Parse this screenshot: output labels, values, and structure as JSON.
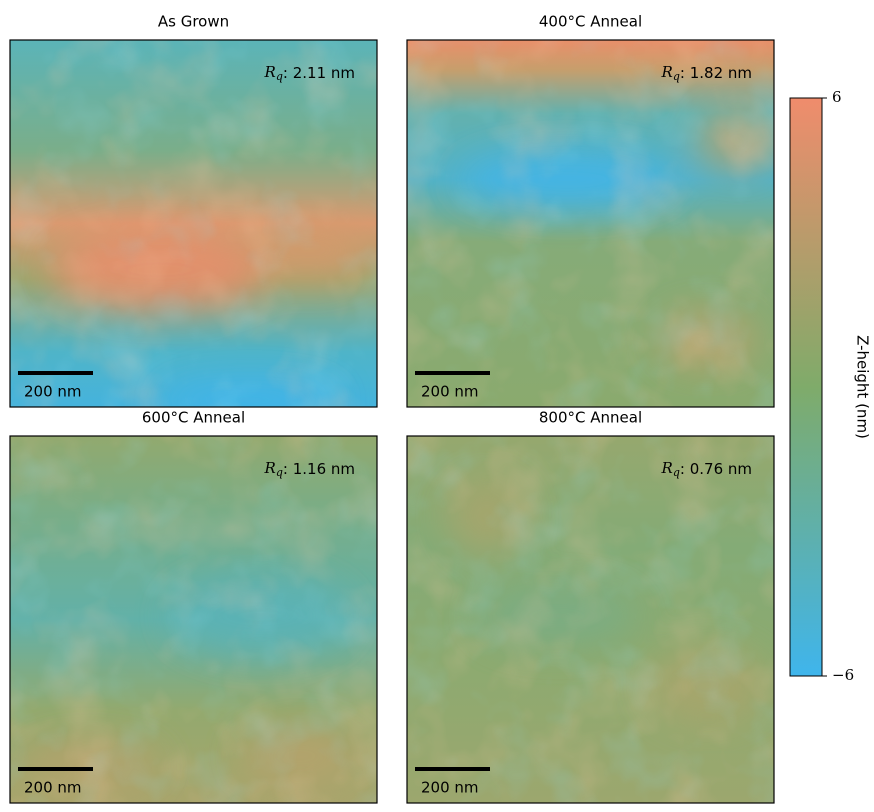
{
  "chart_data": {
    "type": "heatmap",
    "panels": [
      {
        "title": "As Grown",
        "annotation_symbol": "R",
        "annotation_subscript": "q",
        "annotation_text": ": 2.11 nm",
        "scale_bar_label": "200 nm"
      },
      {
        "title": "400°C Anneal",
        "annotation_symbol": "R",
        "annotation_subscript": "q",
        "annotation_text": ": 1.82 nm",
        "scale_bar_label": "200 nm"
      },
      {
        "title": "600°C Anneal",
        "annotation_symbol": "R",
        "annotation_subscript": "q",
        "annotation_text": ": 1.16 nm",
        "scale_bar_label": "200 nm"
      },
      {
        "title": "800°C Anneal",
        "annotation_symbol": "R",
        "annotation_subscript": "q",
        "annotation_text": ": 0.76 nm",
        "scale_bar_label": "200 nm"
      }
    ],
    "colorbar": {
      "label": "Z-height (nm)",
      "ylim": [
        -6,
        6
      ],
      "yticks": [
        6,
        {
          "value": -6,
          "label": "−6"
        }
      ],
      "colors": [
        "#3fb5ec",
        "#7fab6a",
        "#f08c6c"
      ]
    }
  }
}
